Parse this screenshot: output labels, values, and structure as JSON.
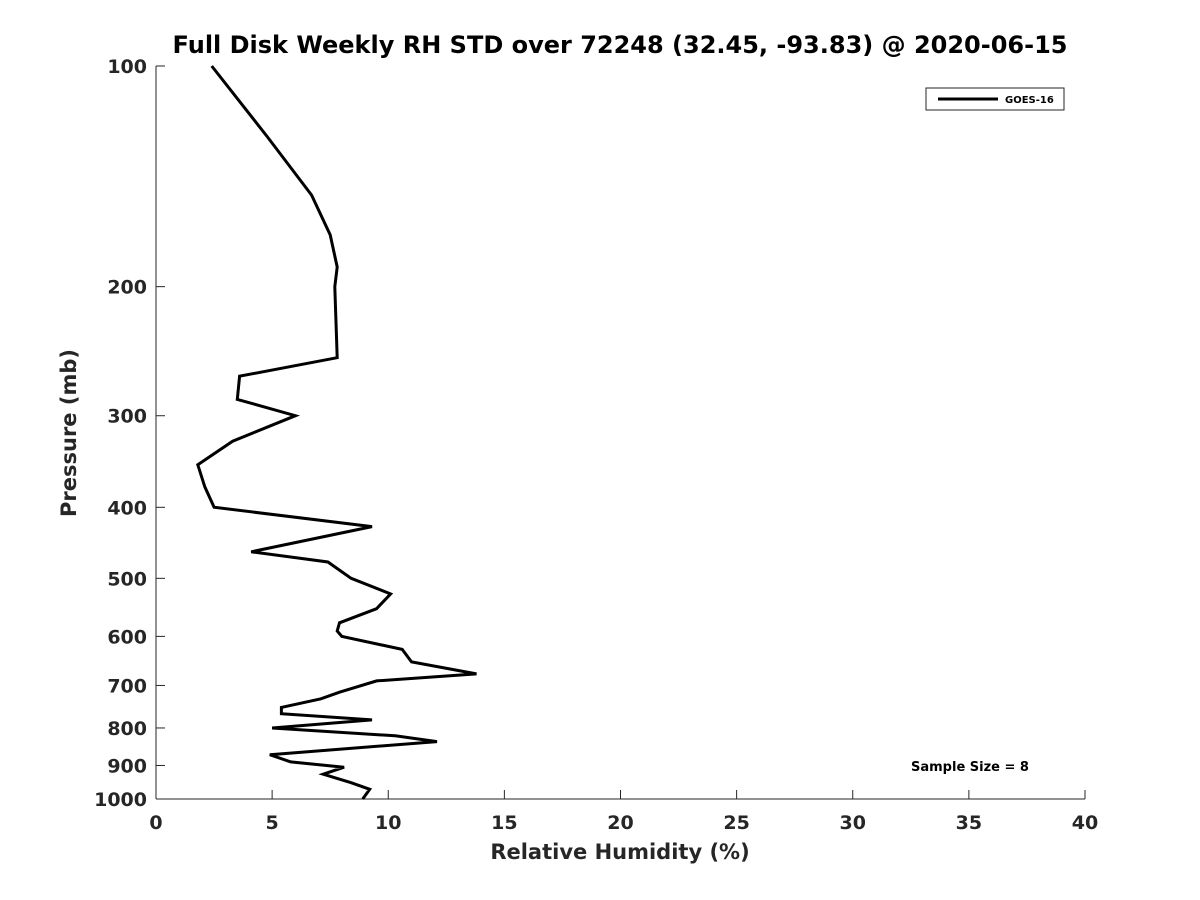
{
  "chart_data": {
    "type": "line",
    "title": "Full Disk Weekly RH STD over 72248 (32.45, -93.83) @ 2020-06-15",
    "xlabel": "Relative Humidity (%)",
    "ylabel": "Pressure (mb)",
    "xlim": [
      0,
      40
    ],
    "ylim": [
      100,
      1000
    ],
    "yscale": "log",
    "yaxis_reversed": true,
    "xticks": [
      0,
      5,
      10,
      15,
      20,
      25,
      30,
      35,
      40
    ],
    "yticks": [
      100,
      200,
      300,
      400,
      500,
      600,
      700,
      800,
      900,
      1000
    ],
    "grid": false,
    "legend_position": "top-right",
    "series": [
      {
        "name": "GOES-16",
        "color": "#000000",
        "x": [
          2.4,
          4.8,
          6.7,
          7.5,
          7.8,
          7.7,
          7.8,
          3.6,
          3.5,
          6.0,
          3.3,
          1.8,
          2.1,
          2.5,
          9.3,
          4.1,
          7.4,
          8.4,
          10.1,
          9.5,
          7.9,
          7.8,
          8.0,
          10.6,
          11.0,
          13.8,
          9.5,
          7.9,
          7.1,
          5.4,
          5.4,
          9.3,
          5.0,
          10.3,
          12.1,
          4.9,
          5.8,
          8.1,
          7.2,
          8.4,
          9.2,
          8.9
        ],
        "y": [
          100,
          125,
          150,
          170,
          188,
          200,
          250,
          265,
          285,
          300,
          325,
          350,
          375,
          400,
          425,
          460,
          475,
          500,
          525,
          550,
          575,
          590,
          600,
          625,
          650,
          675,
          690,
          715,
          730,
          750,
          765,
          780,
          800,
          820,
          835,
          870,
          890,
          905,
          925,
          950,
          970,
          1000
        ]
      }
    ],
    "annotations": [
      "Sample Size = 8"
    ]
  },
  "legend": {
    "label": "GOES-16"
  },
  "note": {
    "text": "Sample Size = 8"
  }
}
